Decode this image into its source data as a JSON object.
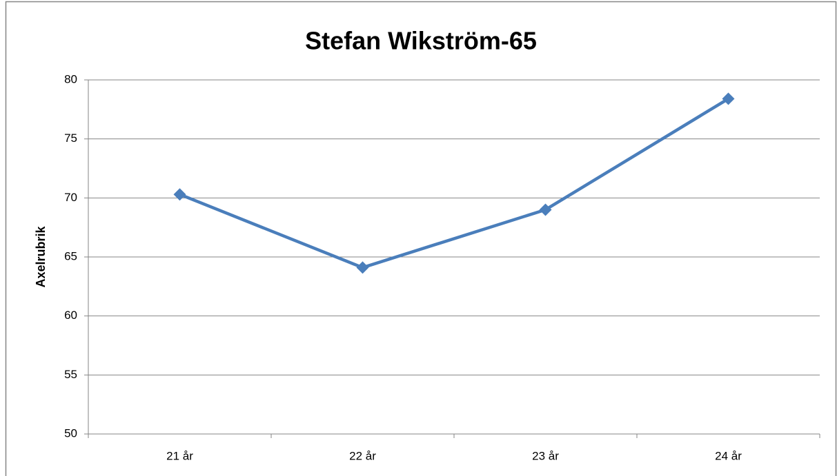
{
  "chart_data": {
    "type": "line",
    "title": "Stefan Wikström-65",
    "y_label": "Axelrubrik",
    "categories": [
      "21 år",
      "22 år",
      "23 år",
      "24 år"
    ],
    "series": [
      {
        "name": "Stefan Wikström-65",
        "color": "#4a7ebb",
        "values": [
          70.3,
          64.1,
          69.0,
          78.4
        ]
      }
    ],
    "ylim": [
      50,
      80
    ],
    "yticks": [
      50,
      55,
      60,
      65,
      70,
      75,
      80
    ],
    "grid": true
  }
}
